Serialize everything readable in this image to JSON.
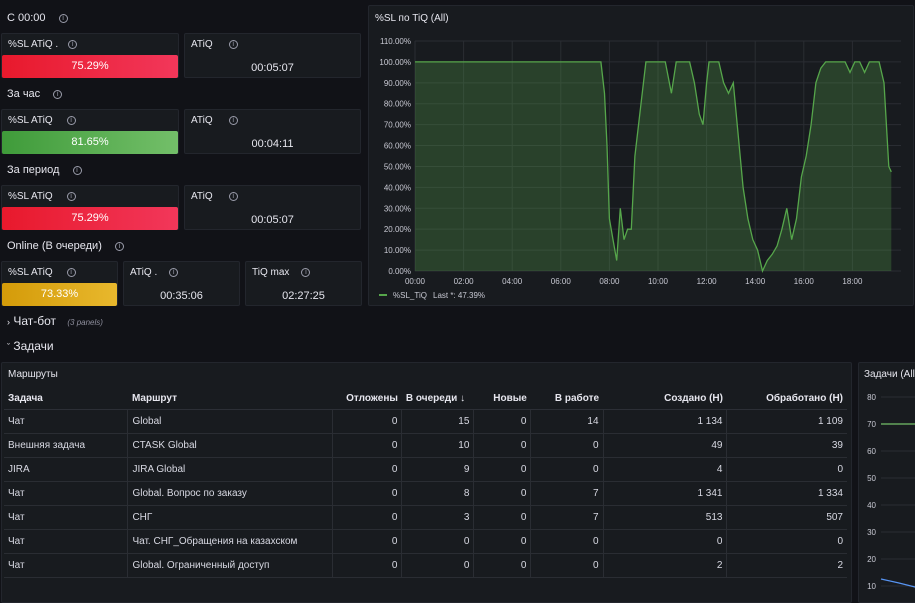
{
  "groups": [
    {
      "label": "С 00:00"
    },
    {
      "label": "За час"
    },
    {
      "label": "За период"
    },
    {
      "label": "Online (В очереди)"
    }
  ],
  "stats": {
    "c00": {
      "sl_title": "%SL ATiQ .",
      "sl_value": "75.29%",
      "sl_color": "#e02f44",
      "atiq_title": "ATiQ",
      "atiq_value": "00:05:07"
    },
    "hour": {
      "sl_title": "%SL ATiQ",
      "sl_value": "81.65%",
      "sl_color": "#56a64b",
      "atiq_title": "ATiQ",
      "atiq_value": "00:04:11"
    },
    "period": {
      "sl_title": "%SL ATiQ",
      "sl_value": "75.29%",
      "sl_color": "#e02f44",
      "atiq_title": "ATiQ",
      "atiq_value": "00:05:07"
    },
    "online": {
      "sl_title": "%SL ATiQ",
      "sl_value": "73.33%",
      "sl_color": "#e0b400",
      "atiq_title": "ATiQ .",
      "atiq_value": "00:35:06",
      "tiq_title": "TiQ max",
      "tiq_value": "02:27:25"
    }
  },
  "rows": {
    "chatbot": {
      "label": "Чат-бот",
      "count": "(3 panels)"
    },
    "tasks": {
      "label": "Задачи"
    }
  },
  "routes": {
    "title": "Маршруты",
    "columns": [
      "Задача",
      "Маршрут",
      "Отложены",
      "В очереди",
      "Новые",
      "В работе",
      "Создано (Н)",
      "Обработано (Н)"
    ],
    "sort_indicator": "↓",
    "rows": [
      [
        "Чат",
        "Global",
        "0",
        "15",
        "0",
        "14",
        "1 134",
        "1 109"
      ],
      [
        "Внешняя задача",
        "CTASK Global",
        "0",
        "10",
        "0",
        "0",
        "49",
        "39"
      ],
      [
        "JIRA",
        "JIRA Global",
        "0",
        "9",
        "0",
        "0",
        "4",
        "0"
      ],
      [
        "Чат",
        "Global. Вопрос по заказу",
        "0",
        "8",
        "0",
        "7",
        "1 341",
        "1 334"
      ],
      [
        "Чат",
        "СНГ",
        "0",
        "3",
        "0",
        "7",
        "513",
        "507"
      ],
      [
        "Чат",
        "Чат. СНГ_Обращения на казахском",
        "0",
        "0",
        "0",
        "0",
        "0",
        "0"
      ],
      [
        "Чат",
        "Global. Ограниченный доступ",
        "0",
        "0",
        "0",
        "0",
        "2",
        "2"
      ]
    ]
  },
  "tasks_chart": {
    "title": "Задачи (All)",
    "ticks": [
      "80",
      "70",
      "60",
      "50",
      "40",
      "30",
      "20",
      "10"
    ]
  },
  "chart_data": {
    "type": "area",
    "title": "%SL по TiQ (All)",
    "series": [
      {
        "name": "%SL_TiQ",
        "color": "#56a64b",
        "last_label": "Last *: 47.39%",
        "x": [
          0,
          7.65,
          7.8,
          7.9,
          8.0,
          8.15,
          8.3,
          8.45,
          8.6,
          8.75,
          8.9,
          9.05,
          9.3,
          9.5,
          9.7,
          9.85,
          10.0,
          10.3,
          10.55,
          10.75,
          10.9,
          11.1,
          11.3,
          11.5,
          11.7,
          11.85,
          12.0,
          12.1,
          12.3,
          12.5,
          12.7,
          12.9,
          13.1,
          13.3,
          13.5,
          13.7,
          13.9,
          14.1,
          14.3,
          14.5,
          14.7,
          14.9,
          15.1,
          15.3,
          15.5,
          15.7,
          15.9,
          16.1,
          16.3,
          16.5,
          16.7,
          16.9,
          17.1,
          17.3,
          17.5,
          17.7,
          17.9,
          18.1,
          18.3,
          18.5,
          18.7,
          18.9,
          19.1,
          19.3,
          19.5,
          19.6
        ],
        "y": [
          100,
          100,
          85,
          60,
          25,
          15,
          5,
          30,
          15,
          20,
          20,
          55,
          80,
          100,
          100,
          100,
          100,
          100,
          85,
          100,
          100,
          100,
          100,
          90,
          75,
          70,
          90,
          100,
          100,
          100,
          90,
          85,
          90,
          65,
          40,
          25,
          15,
          10,
          0,
          5,
          8,
          12,
          20,
          30,
          15,
          25,
          45,
          55,
          70,
          90,
          97,
          100,
          100,
          100,
          100,
          100,
          95,
          100,
          100,
          95,
          100,
          100,
          100,
          90,
          50,
          47.39
        ]
      }
    ],
    "x_ticks": [
      "00:00",
      "02:00",
      "04:00",
      "06:00",
      "08:00",
      "10:00",
      "12:00",
      "14:00",
      "16:00",
      "18:00"
    ],
    "y_ticks": [
      "0.00%",
      "10.00%",
      "20.00%",
      "30.00%",
      "40.00%",
      "50.00%",
      "60.00%",
      "70.00%",
      "80.00%",
      "90.00%",
      "100.00%",
      "110.00%"
    ],
    "xlim": [
      0,
      20
    ],
    "ylim": [
      0,
      110
    ],
    "grid": true,
    "legend": "bottom-left"
  }
}
